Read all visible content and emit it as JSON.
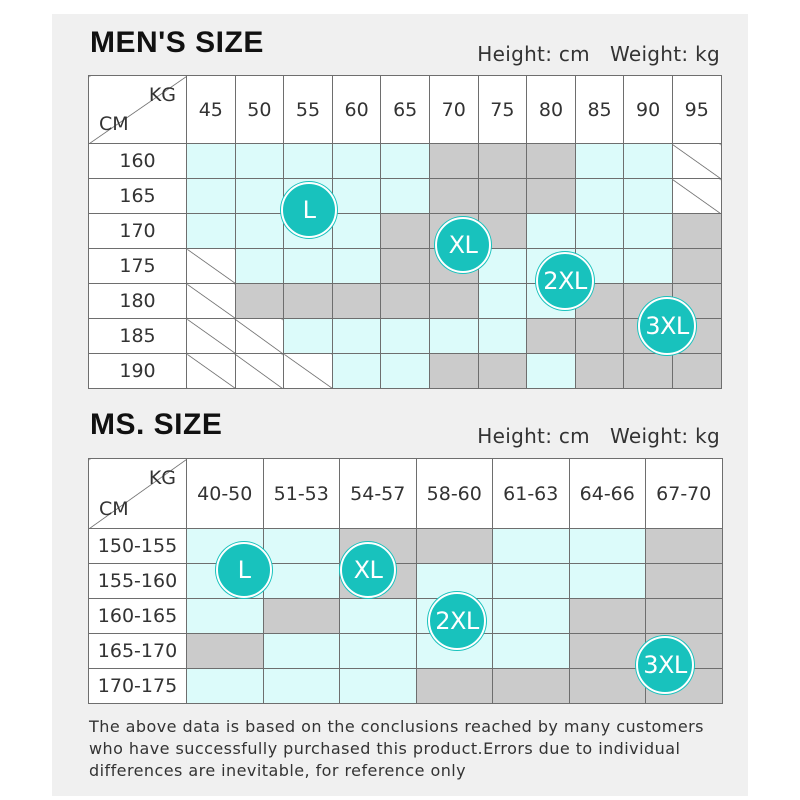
{
  "mens": {
    "title": "MEN'S SIZE",
    "units": "Height: cm   Weight: kg",
    "corner": {
      "kg": "KG",
      "cm": "CM"
    },
    "weights": [
      "45",
      "50",
      "55",
      "60",
      "65",
      "70",
      "75",
      "80",
      "85",
      "90",
      "95"
    ],
    "heights": [
      "160",
      "165",
      "170",
      "175",
      "180",
      "185",
      "190"
    ],
    "grid": [
      "cccccgggccx",
      "cccccgggccx",
      "ccccgggcccg",
      "xcccggccccg",
      "xgggggccggg",
      "xxcccccgggg",
      "xxxccggcggg"
    ],
    "badges": [
      "L",
      "XL",
      "2XL",
      "3XL"
    ],
    "badge_color": "#18c2bd",
    "cyan_color": "#dcfbfa",
    "gray_color": "#cbcbcb"
  },
  "ms": {
    "title": "MS. SIZE",
    "units": "Height: cm   Weight: kg",
    "corner": {
      "kg": "KG",
      "cm": "CM"
    },
    "weights": [
      "40-50",
      "51-53",
      "54-57",
      "58-60",
      "61-63",
      "64-66",
      "67-70"
    ],
    "heights": [
      "150-155",
      "155-160",
      "160-165",
      "165-170",
      "170-175"
    ],
    "grid": [
      "ccggccg",
      "ccgcccg",
      "cgcccgg",
      "gccccgg",
      "cccgggg"
    ],
    "badges": [
      "L",
      "XL",
      "2XL",
      "3XL"
    ]
  },
  "footnote": "The above data is based on the conclusions reached by many customers who have successfully purchased this product.Errors due to individual differences are inevitable, for reference only"
}
